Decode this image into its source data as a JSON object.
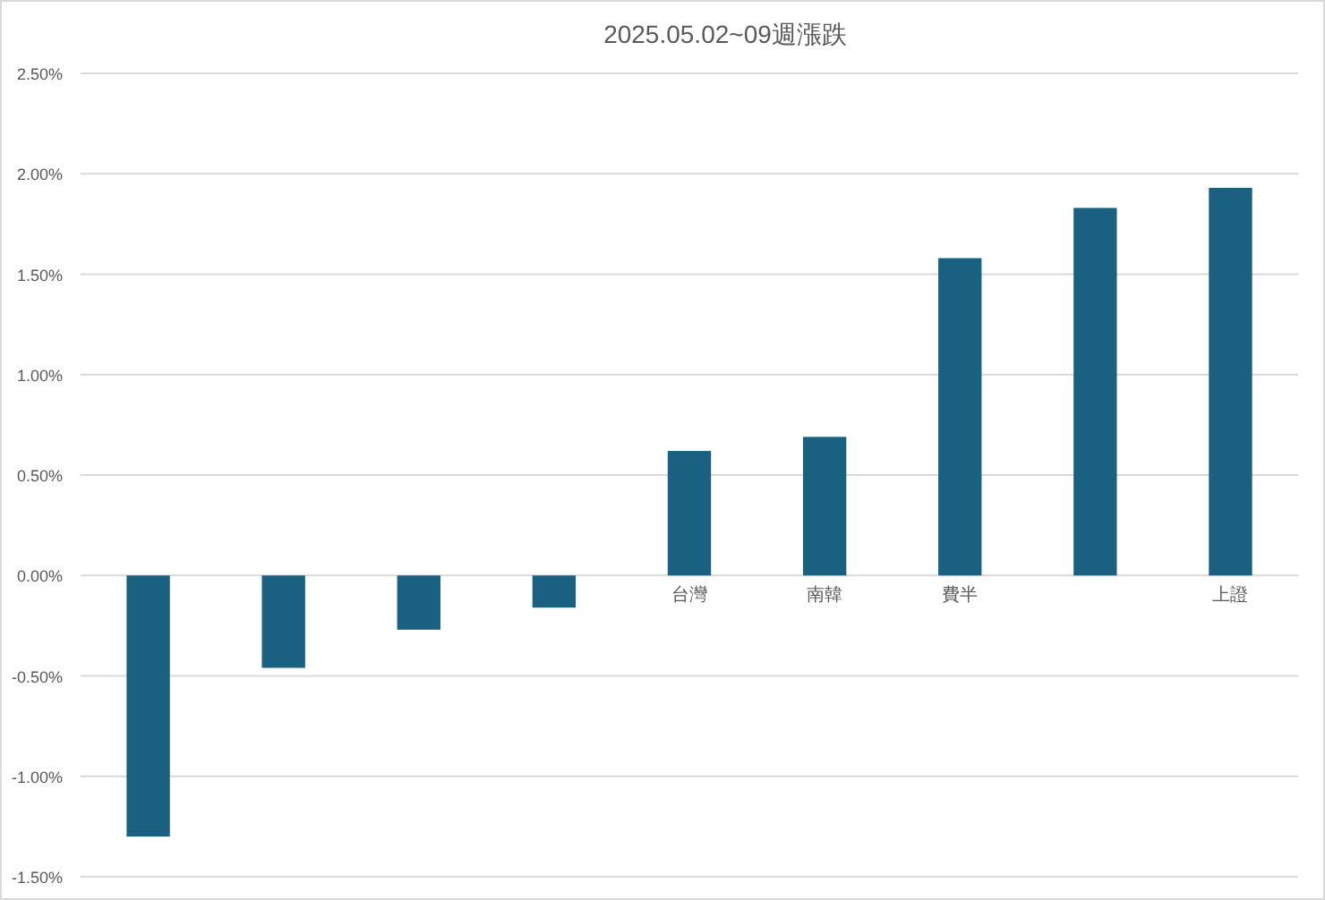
{
  "chart_data": {
    "type": "bar",
    "title": "2025.05.02~09週漲跌",
    "categories": [
      null,
      null,
      null,
      null,
      "台灣",
      "南韓",
      "費半",
      null,
      "上證"
    ],
    "values": [
      -1.3,
      -0.46,
      -0.27,
      -0.16,
      0.62,
      0.69,
      1.58,
      1.83,
      1.93
    ],
    "color": "#1a6080",
    "ylim": [
      -1.5,
      2.5
    ],
    "yticks": [
      {
        "value": -1.5,
        "label": "-1.50%"
      },
      {
        "value": -1.0,
        "label": "-1.00%"
      },
      {
        "value": -0.5,
        "label": "-0.50%"
      },
      {
        "value": 0,
        "label": "0.00%"
      },
      {
        "value": 0.5,
        "label": "0.50%"
      },
      {
        "value": 1.0,
        "label": "1.00%"
      },
      {
        "value": 1.5,
        "label": "1.50%"
      },
      {
        "value": 2.0,
        "label": "2.00%"
      },
      {
        "value": 2.5,
        "label": "2.50%"
      }
    ],
    "grid": "y"
  }
}
